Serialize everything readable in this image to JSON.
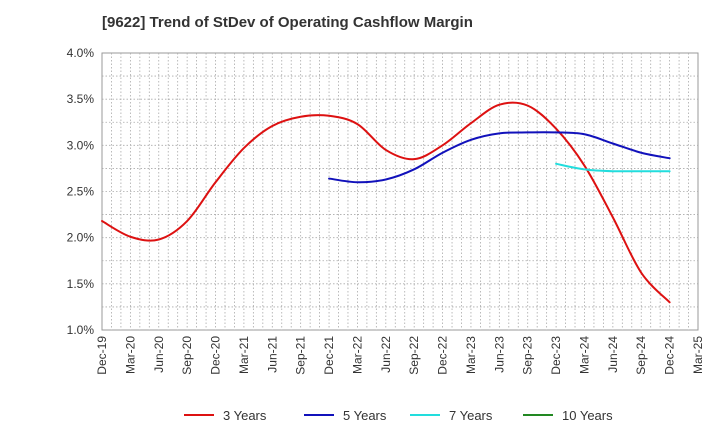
{
  "chart_data": {
    "type": "line",
    "title": "[9622]  Trend of StDev of Operating Cashflow Margin",
    "xlabel": "",
    "ylabel": "",
    "ylim": [
      1.0,
      4.0
    ],
    "y_ticks": [
      "1.0%",
      "1.5%",
      "2.0%",
      "2.5%",
      "3.0%",
      "3.5%",
      "4.0%"
    ],
    "x_ticks": [
      "Dec-19",
      "Mar-20",
      "Jun-20",
      "Sep-20",
      "Dec-20",
      "Mar-21",
      "Jun-21",
      "Sep-21",
      "Dec-21",
      "Mar-22",
      "Jun-22",
      "Sep-22",
      "Dec-22",
      "Mar-23",
      "Jun-23",
      "Sep-23",
      "Dec-23",
      "Mar-24",
      "Jun-24",
      "Sep-24",
      "Dec-24",
      "Mar-25"
    ],
    "grid": true,
    "legend_position": "bottom",
    "series": [
      {
        "name": "3 Years",
        "color": "#dd1111",
        "points": [
          [
            "Dec-19",
            2.18
          ],
          [
            "Mar-20",
            2.01
          ],
          [
            "Jun-20",
            1.98
          ],
          [
            "Sep-20",
            2.18
          ],
          [
            "Dec-20",
            2.6
          ],
          [
            "Mar-21",
            2.97
          ],
          [
            "Jun-21",
            3.21
          ],
          [
            "Sep-21",
            3.31
          ],
          [
            "Dec-21",
            3.32
          ],
          [
            "Mar-22",
            3.23
          ],
          [
            "Jun-22",
            2.95
          ],
          [
            "Sep-22",
            2.85
          ],
          [
            "Dec-22",
            3.0
          ],
          [
            "Mar-23",
            3.24
          ],
          [
            "Jun-23",
            3.44
          ],
          [
            "Sep-23",
            3.43
          ],
          [
            "Dec-23",
            3.18
          ],
          [
            "Mar-24",
            2.78
          ],
          [
            "Jun-24",
            2.22
          ],
          [
            "Sep-24",
            1.62
          ],
          [
            "Dec-24",
            1.3
          ]
        ]
      },
      {
        "name": "5 Years",
        "color": "#1111bb",
        "points": [
          [
            "Dec-21",
            2.64
          ],
          [
            "Mar-22",
            2.6
          ],
          [
            "Jun-22",
            2.63
          ],
          [
            "Sep-22",
            2.74
          ],
          [
            "Dec-22",
            2.92
          ],
          [
            "Mar-23",
            3.06
          ],
          [
            "Jun-23",
            3.13
          ],
          [
            "Sep-23",
            3.14
          ],
          [
            "Dec-23",
            3.14
          ],
          [
            "Mar-24",
            3.12
          ],
          [
            "Jun-24",
            3.02
          ],
          [
            "Sep-24",
            2.92
          ],
          [
            "Dec-24",
            2.86
          ]
        ]
      },
      {
        "name": "7 Years",
        "color": "#22dddd",
        "points": [
          [
            "Dec-23",
            2.8
          ],
          [
            "Mar-24",
            2.74
          ],
          [
            "Jun-24",
            2.72
          ],
          [
            "Sep-24",
            2.72
          ],
          [
            "Dec-24",
            2.72
          ]
        ]
      },
      {
        "name": "10 Years",
        "color": "#228822",
        "points": []
      }
    ]
  }
}
